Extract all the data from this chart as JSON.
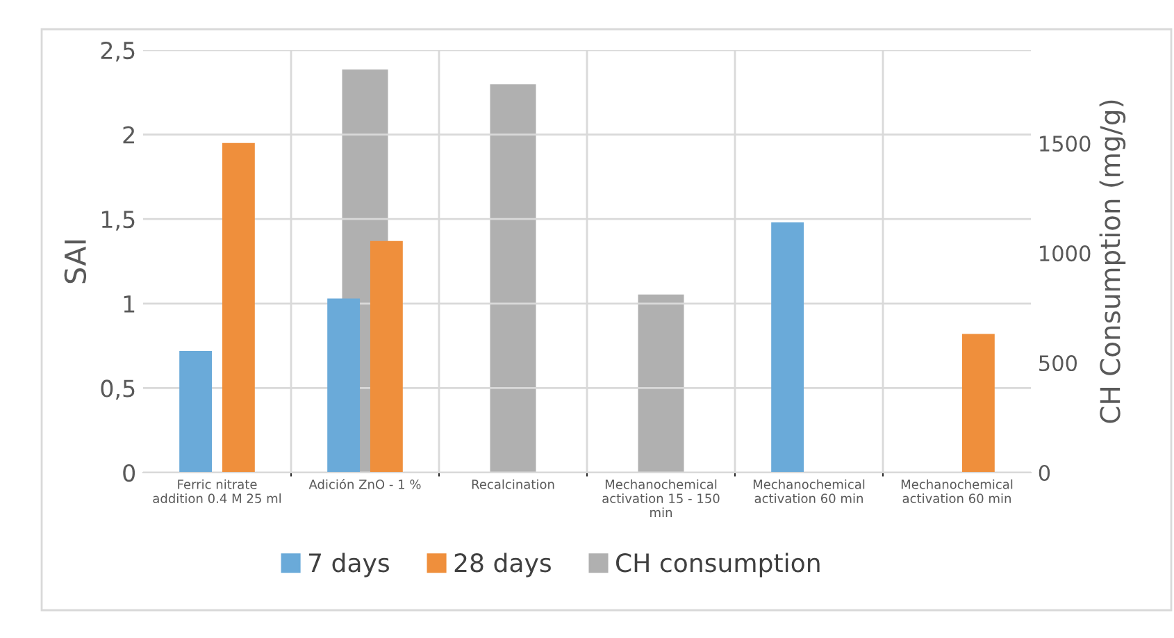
{
  "chart_data": {
    "type": "bar",
    "categories": [
      "Ferric nitrate addition 0.4 M 25 ml",
      "Adición ZnO - 1 %",
      "Recalcination",
      "Mechanochemical activation 15 - 150 min",
      "Mechanochemical activation 60 min",
      "Mechanochemical activation 60 min"
    ],
    "series": [
      {
        "name": "7 days",
        "color": "#6aaad9",
        "values": [
          0.72,
          1.03,
          null,
          null,
          1.48,
          null
        ]
      },
      {
        "name": "28 days",
        "color": "#ef8f3c",
        "values": [
          1.95,
          1.37,
          null,
          null,
          null,
          0.82
        ]
      },
      {
        "name": "CH consumption",
        "color": "#b0b0b0",
        "axis": "y2",
        "values": [
          null,
          1836,
          1769,
          811,
          null,
          null
        ]
      }
    ],
    "ylabel": "SAI",
    "y2label": "CH Consumption (mg/g)",
    "ylim": [
      0,
      2.5
    ],
    "yticks": [
      {
        "value": 0,
        "label": "0"
      },
      {
        "value": 0.5,
        "label": "0,5"
      },
      {
        "value": 1,
        "label": "1"
      },
      {
        "value": 1.5,
        "label": "1,5"
      },
      {
        "value": 2,
        "label": "2"
      },
      {
        "value": 2.5,
        "label": "2,5"
      }
    ],
    "y2lim": [
      0,
      1925
    ],
    "y2ticks": [
      0,
      500,
      1000,
      1500
    ],
    "grid": true,
    "legend": "bottom"
  }
}
